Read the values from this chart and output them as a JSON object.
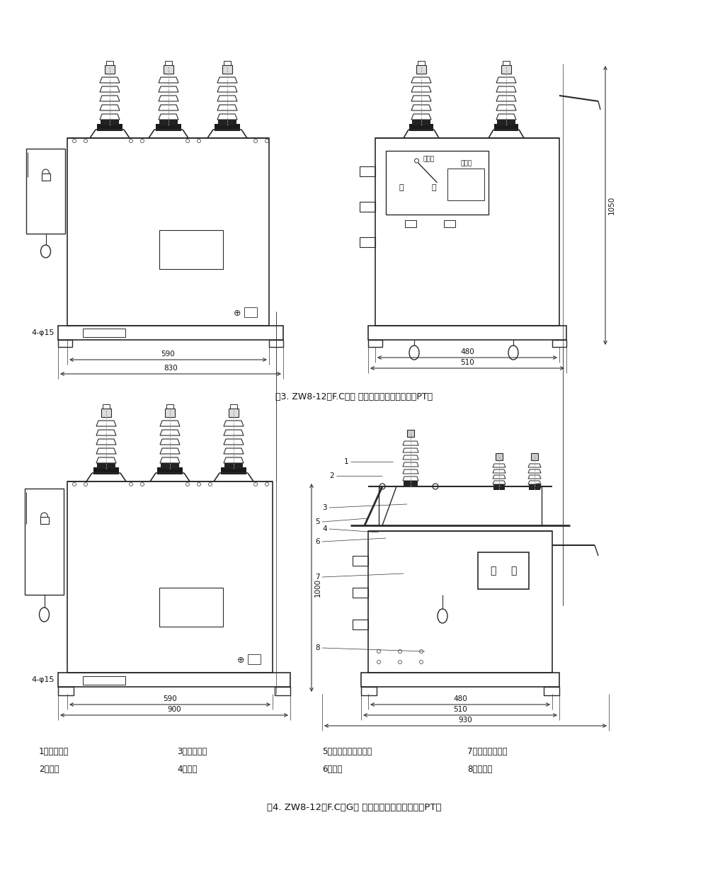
{
  "fig3_caption": "图3. ZW8-12（F.C）型 外形及安装尺寸图（内置PT）",
  "fig4_caption": "图4. ZW8-12（F.C）G型 外形及安装尺寸图（内置PT）",
  "legend_row1": [
    "1、接触刀片",
    "3、绝缘拉杆",
    "5、隔离开关操作手柄",
    "7、隔离开关支架"
  ],
  "legend_row2": [
    "2、触刀",
    "4、支柱",
    "6、转轴",
    "8、断路器"
  ],
  "bg_color": "#ffffff",
  "line_color": "#2a2a2a",
  "dim_color": "#333333",
  "text_color": "#111111"
}
